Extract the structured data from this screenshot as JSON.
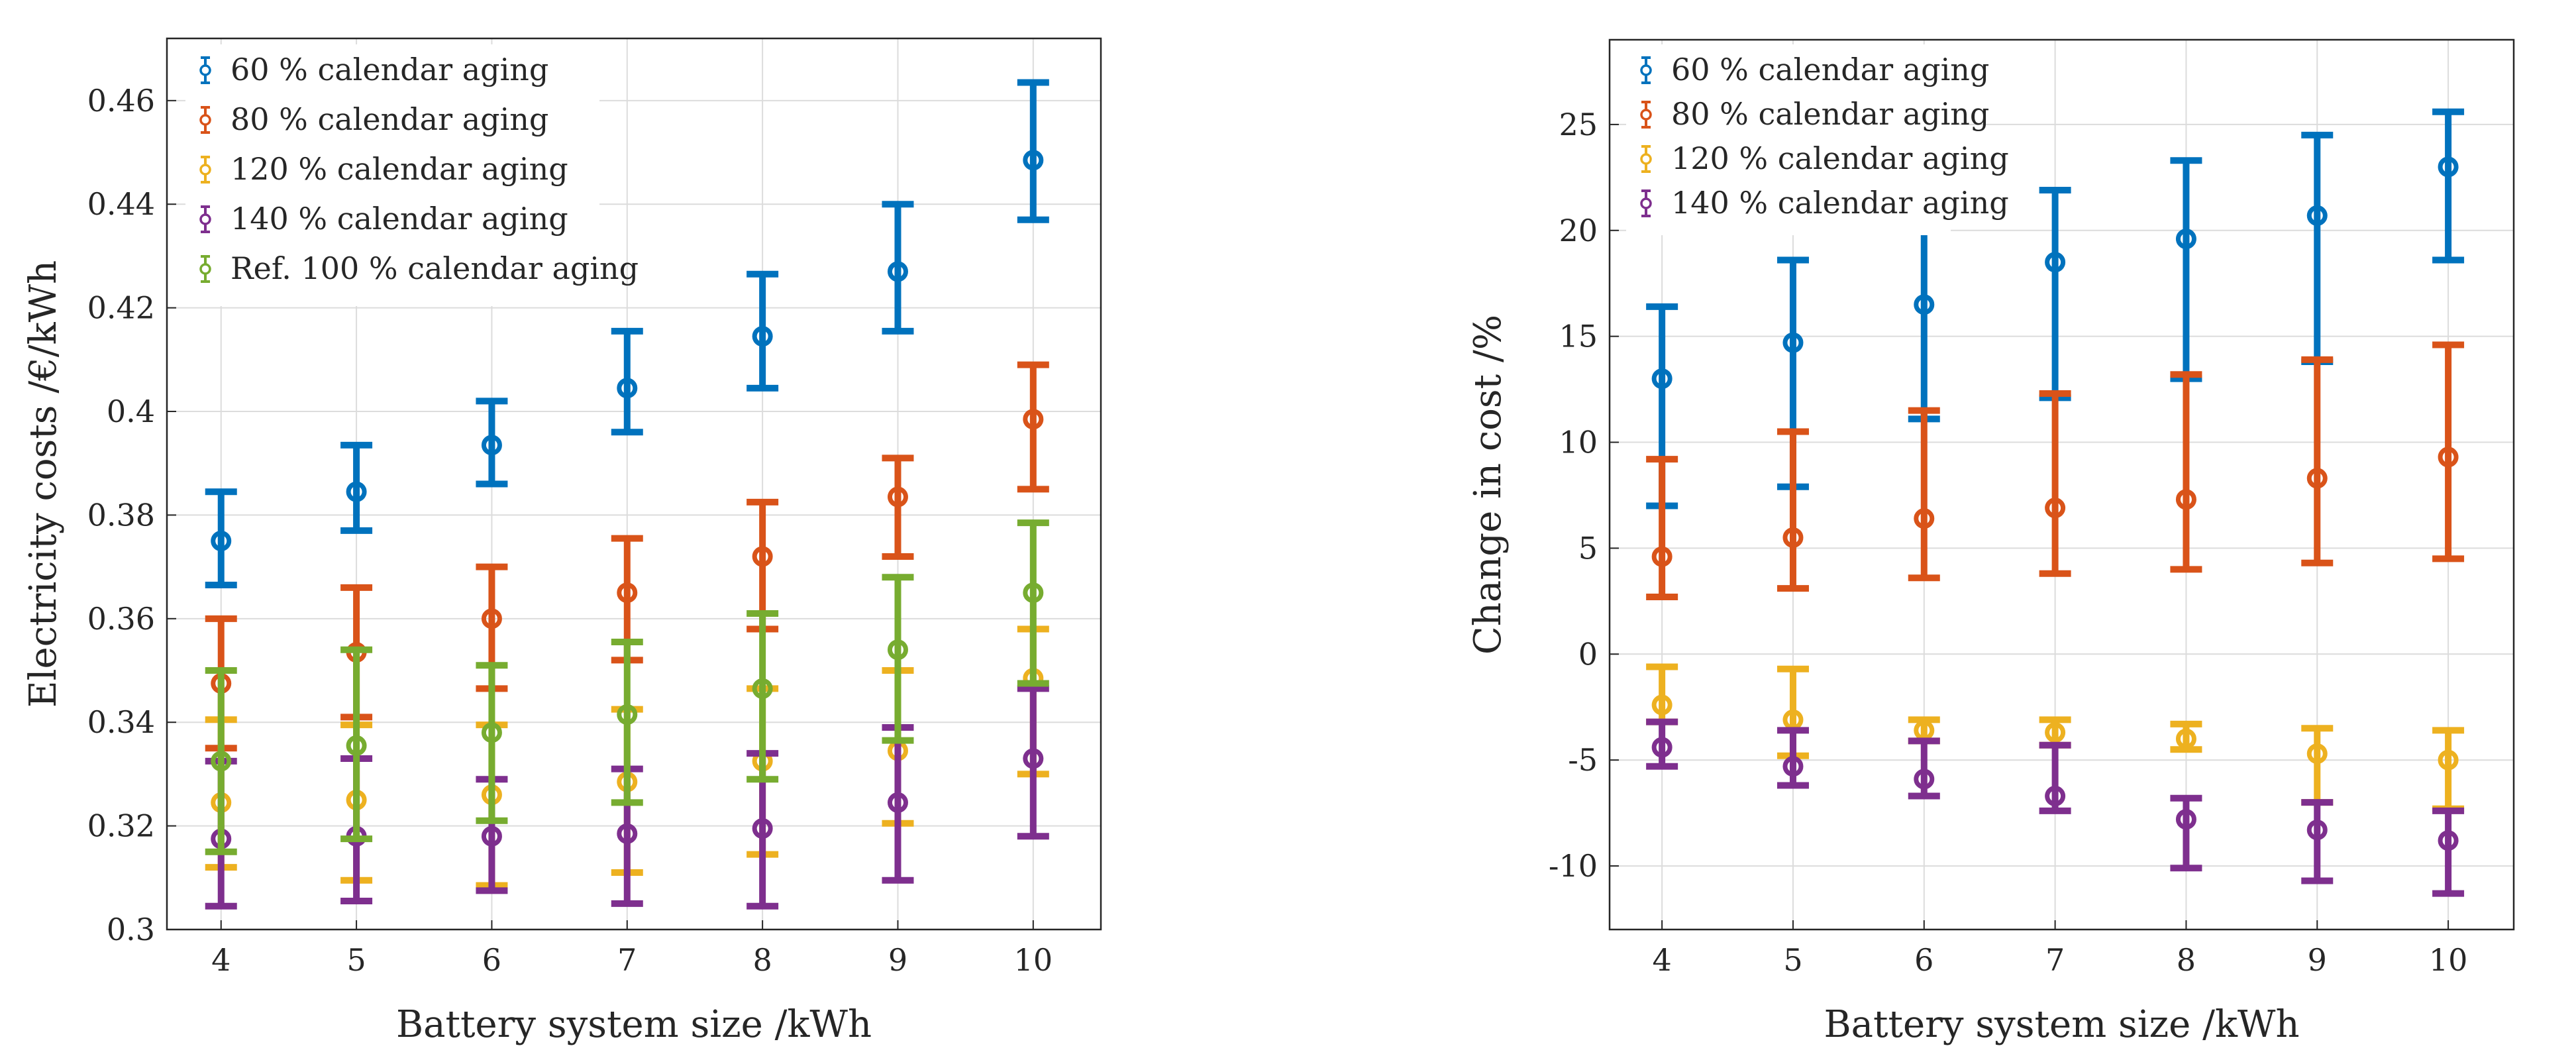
{
  "chart_data": [
    {
      "type": "errorbar",
      "title": "",
      "xlabel": "Battery system size /kWh",
      "ylabel": "Electricity costs /€/kWh",
      "xlim": [
        3.6,
        10.5
      ],
      "ylim": [
        0.3,
        0.472
      ],
      "x": [
        4,
        5,
        6,
        7,
        8,
        9,
        10
      ],
      "xticks": [
        "4",
        "5",
        "6",
        "7",
        "8",
        "9",
        "10"
      ],
      "yticks": [
        0.3,
        0.32,
        0.34,
        0.36,
        0.38,
        0.4,
        0.42,
        0.44,
        0.46
      ],
      "yticklabels": [
        "0.3",
        "0.32",
        "0.34",
        "0.36",
        "0.38",
        "0.4",
        "0.42",
        "0.44",
        "0.46"
      ],
      "grid": true,
      "legend_position": "top-left",
      "series": [
        {
          "name": "60 % calendar aging",
          "color": "#0072BD",
          "values": [
            0.375,
            0.3845,
            0.3935,
            0.4045,
            0.4145,
            0.427,
            0.4485
          ],
          "lower": [
            0.3665,
            0.377,
            0.386,
            0.396,
            0.4045,
            0.4155,
            0.437
          ],
          "upper": [
            0.3845,
            0.3935,
            0.402,
            0.4155,
            0.4265,
            0.44,
            0.4635
          ]
        },
        {
          "name": "80 % calendar aging",
          "color": "#D95319",
          "values": [
            0.3475,
            0.3535,
            0.36,
            0.365,
            0.372,
            0.3835,
            0.3985
          ],
          "lower": [
            0.335,
            0.341,
            0.3465,
            0.352,
            0.358,
            0.372,
            0.385
          ],
          "upper": [
            0.36,
            0.366,
            0.37,
            0.3755,
            0.3825,
            0.391,
            0.409
          ]
        },
        {
          "name": "120 % calendar aging",
          "color": "#EDB120",
          "values": [
            0.3245,
            0.325,
            0.326,
            0.3285,
            0.3325,
            0.3345,
            0.3485
          ],
          "lower": [
            0.312,
            0.3095,
            0.3085,
            0.311,
            0.3145,
            0.3205,
            0.33
          ],
          "upper": [
            0.3405,
            0.3395,
            0.3395,
            0.3425,
            0.3465,
            0.35,
            0.358
          ]
        },
        {
          "name": "140 % calendar aging",
          "color": "#7E2F8E",
          "values": [
            0.3175,
            0.318,
            0.318,
            0.3185,
            0.3195,
            0.3245,
            0.333
          ],
          "lower": [
            0.3045,
            0.3055,
            0.3075,
            0.305,
            0.3045,
            0.3095,
            0.318
          ],
          "upper": [
            0.3325,
            0.333,
            0.329,
            0.331,
            0.334,
            0.339,
            0.3465
          ]
        },
        {
          "name": "Ref. 100 % calendar aging",
          "color": "#77AC30",
          "values": [
            0.3325,
            0.3355,
            0.338,
            0.3415,
            0.3465,
            0.354,
            0.365
          ],
          "lower": [
            0.315,
            0.3175,
            0.321,
            0.3245,
            0.329,
            0.3365,
            0.3475
          ],
          "upper": [
            0.35,
            0.354,
            0.351,
            0.3555,
            0.361,
            0.368,
            0.3785
          ]
        }
      ]
    },
    {
      "type": "errorbar",
      "title": "",
      "xlabel": "Battery system size /kWh",
      "ylabel": "Change in cost /%",
      "xlim": [
        3.6,
        10.5
      ],
      "ylim": [
        -13,
        29
      ],
      "x": [
        4,
        5,
        6,
        7,
        8,
        9,
        10
      ],
      "xticks": [
        "4",
        "5",
        "6",
        "7",
        "8",
        "9",
        "10"
      ],
      "yticks": [
        -10,
        -5,
        0,
        5,
        10,
        15,
        20,
        25
      ],
      "yticklabels": [
        "-10",
        "-5",
        "0",
        "5",
        "10",
        "15",
        "20",
        "25"
      ],
      "grid": true,
      "legend_position": "top-left",
      "series": [
        {
          "name": "60 % calendar aging",
          "color": "#0072BD",
          "values": [
            13,
            14.7,
            16.5,
            18.5,
            19.6,
            20.7,
            23
          ],
          "lower": [
            7,
            7.9,
            11.1,
            12.1,
            13,
            13.8,
            18.6
          ],
          "upper": [
            16.4,
            18.6,
            20.4,
            21.9,
            23.3,
            24.5,
            25.6
          ]
        },
        {
          "name": "80 % calendar aging",
          "color": "#D95319",
          "values": [
            4.6,
            5.5,
            6.4,
            6.9,
            7.3,
            8.3,
            9.3
          ],
          "lower": [
            2.7,
            3.1,
            3.6,
            3.8,
            4,
            4.3,
            4.5
          ],
          "upper": [
            9.2,
            10.5,
            11.5,
            12.3,
            13.2,
            13.9,
            14.6
          ]
        },
        {
          "name": "120 % calendar aging",
          "color": "#EDB120",
          "values": [
            -2.4,
            -3.1,
            -3.6,
            -3.7,
            -4,
            -4.7,
            -5
          ],
          "lower": [
            -3.2,
            -4.8,
            -4.1,
            -4.3,
            -4.5,
            -7,
            -7.3
          ],
          "upper": [
            -0.6,
            -0.7,
            -3.1,
            -3.1,
            -3.3,
            -3.5,
            -3.6
          ]
        },
        {
          "name": "140 % calendar aging",
          "color": "#7E2F8E",
          "values": [
            -4.4,
            -5.3,
            -5.9,
            -6.7,
            -7.8,
            -8.3,
            -8.8
          ],
          "lower": [
            -5.3,
            -6.2,
            -6.7,
            -7.4,
            -10.1,
            -10.7,
            -11.3
          ],
          "upper": [
            -3.2,
            -3.6,
            -4.1,
            -4.3,
            -6.8,
            -7,
            -7.4
          ]
        }
      ]
    }
  ]
}
